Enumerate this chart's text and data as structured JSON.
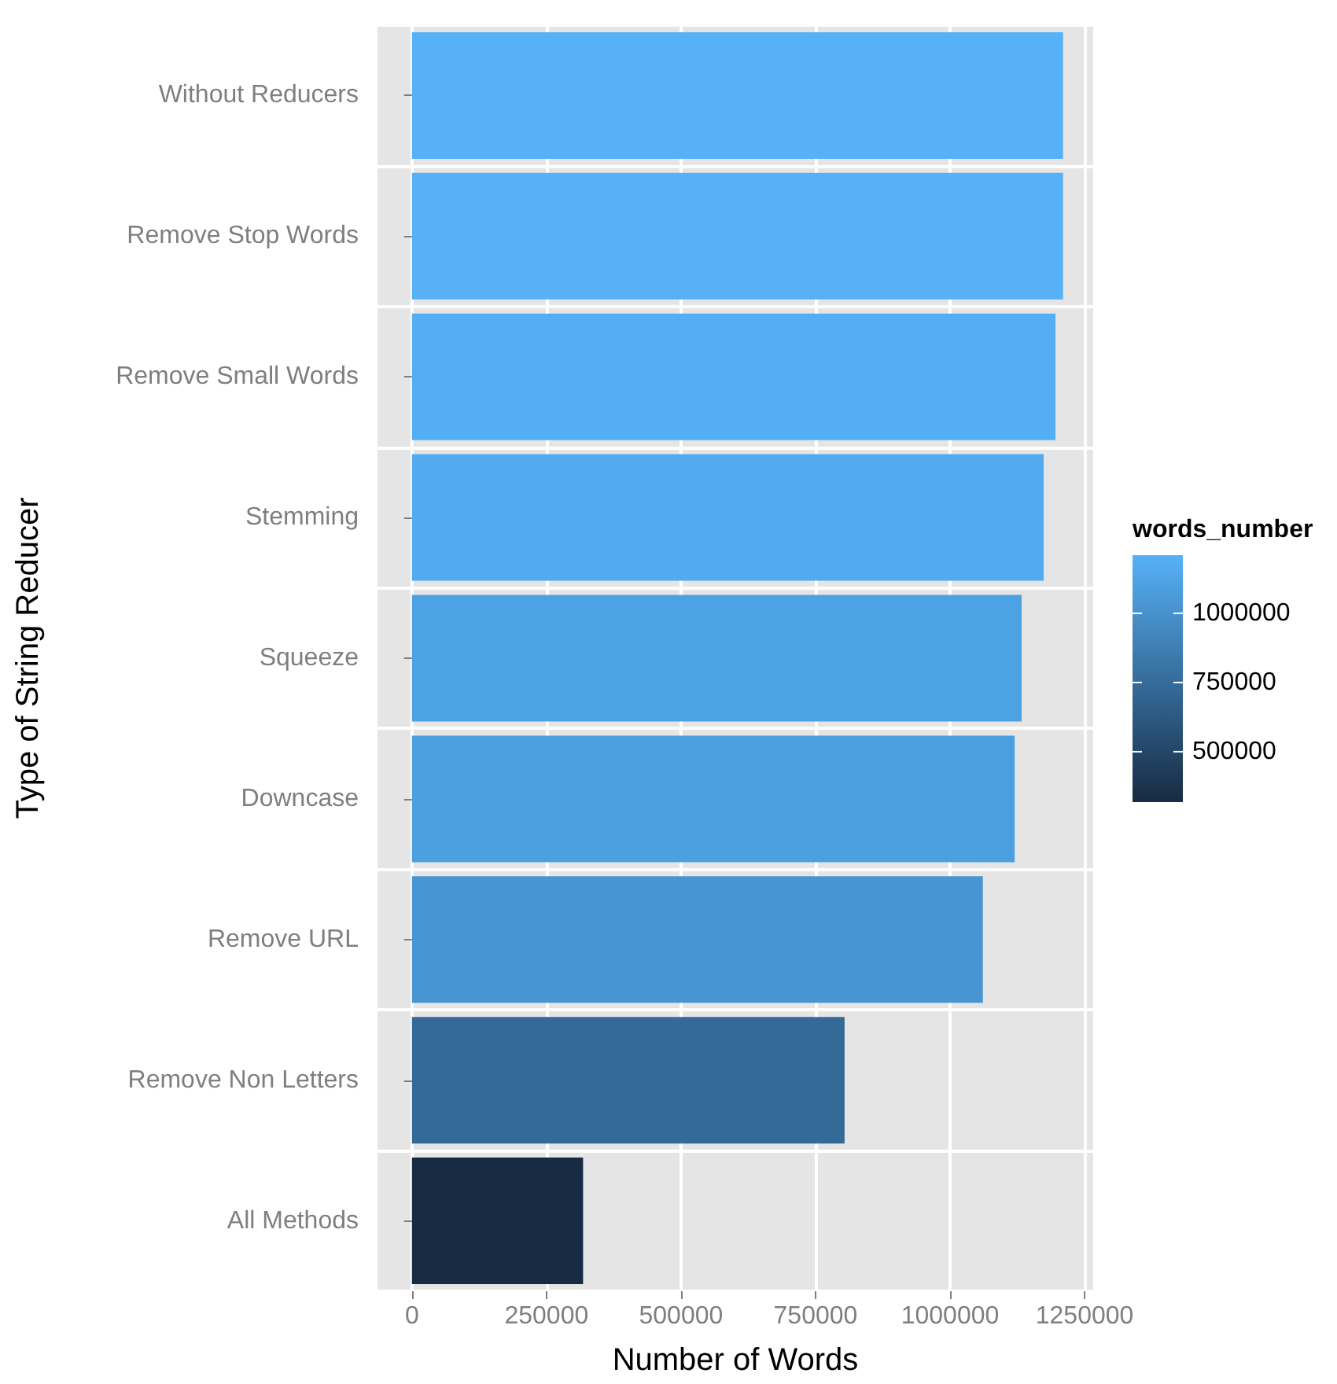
{
  "chart_data": {
    "type": "bar",
    "orientation": "horizontal",
    "xlabel": "Number of Words",
    "ylabel": "Type of String Reducer",
    "legend_title": "words_number",
    "categories": [
      "Without Reducers",
      "Remove Stop Words",
      "Remove Small Words",
      "Stemming",
      "Squeeze",
      "Downcase",
      "Remove URL",
      "Remove Non Letters",
      "All Methods"
    ],
    "values": [
      1210000,
      1210000,
      1196000,
      1174000,
      1133000,
      1120000,
      1061000,
      804000,
      318000
    ],
    "colors": [
      "#56b1f7",
      "#56b1f7",
      "#54aef4",
      "#52abf0",
      "#4da2e3",
      "#4ca0e0",
      "#4796d3",
      "#336a98",
      "#172b43"
    ],
    "xlim": [
      -64000,
      1266000
    ],
    "xticks": [
      0,
      250000,
      500000,
      750000,
      1000000,
      1250000
    ],
    "clim": [
      318000,
      1210000
    ],
    "cticks": [
      500000,
      750000,
      1000000
    ],
    "grid": true
  }
}
